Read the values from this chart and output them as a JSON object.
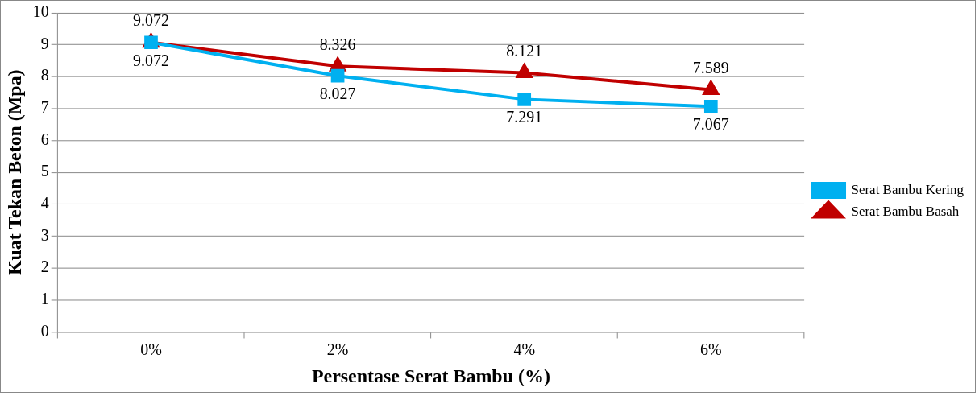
{
  "chart_data": {
    "type": "line",
    "xlabel": "Persentase Serat Bambu (%)",
    "ylabel": "Kuat Tekan Beton (Mpa)",
    "categories": [
      "0%",
      "2%",
      "4%",
      "6%"
    ],
    "series": [
      {
        "name": "Serat Bambu Kering",
        "color": "#00b0f0",
        "marker": "square",
        "values": [
          9.072,
          8.027,
          7.291,
          7.067
        ]
      },
      {
        "name": "Serat Bambu Basah",
        "color": "#c00000",
        "marker": "triangle",
        "values": [
          9.072,
          8.326,
          8.121,
          7.589
        ]
      }
    ],
    "ylim": [
      0,
      10
    ],
    "yticks": [
      0,
      1,
      2,
      3,
      4,
      5,
      6,
      7,
      8,
      9,
      10
    ],
    "grid": "y",
    "legend": "right",
    "data_labels": true,
    "line_style": "solid"
  }
}
